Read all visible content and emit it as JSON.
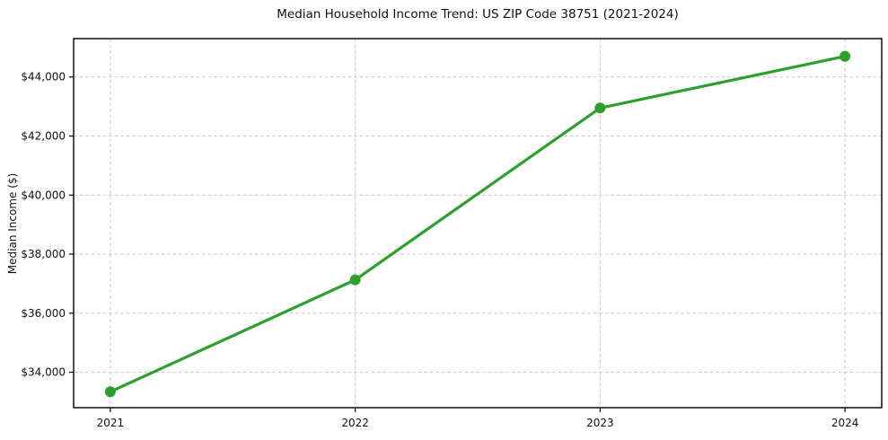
{
  "figure": {
    "title": "Median Household Income Trend: US ZIP Code 38751 (2021-2024)"
  },
  "chart_data": {
    "type": "line",
    "title": "Median Household Income Trend: US ZIP Code 38751 (2021-2024)",
    "xlabel": "",
    "ylabel": "Median Income ($)",
    "x": [
      2021,
      2022,
      2023,
      2024
    ],
    "values": [
      33340,
      37130,
      42950,
      44700
    ],
    "series_name": "Median Household Income",
    "xticks": [
      2021,
      2022,
      2023,
      2024
    ],
    "xtick_labels": [
      "2021",
      "2022",
      "2023",
      "2024"
    ],
    "yticks": [
      34000,
      36000,
      38000,
      40000,
      42000,
      44000
    ],
    "ytick_labels": [
      "$34,000",
      "$36,000",
      "$38,000",
      "$40,000",
      "$42,000",
      "$44,000"
    ],
    "xlim": [
      2020.85,
      2024.15
    ],
    "ylim": [
      32800,
      45300
    ],
    "grid": true,
    "legend_position": "none",
    "line_color": "#2ca02c",
    "marker_color": "#2ca02c",
    "grid_color": "#cccccc",
    "spine_color": "#000000",
    "background_color": "#ffffff"
  }
}
